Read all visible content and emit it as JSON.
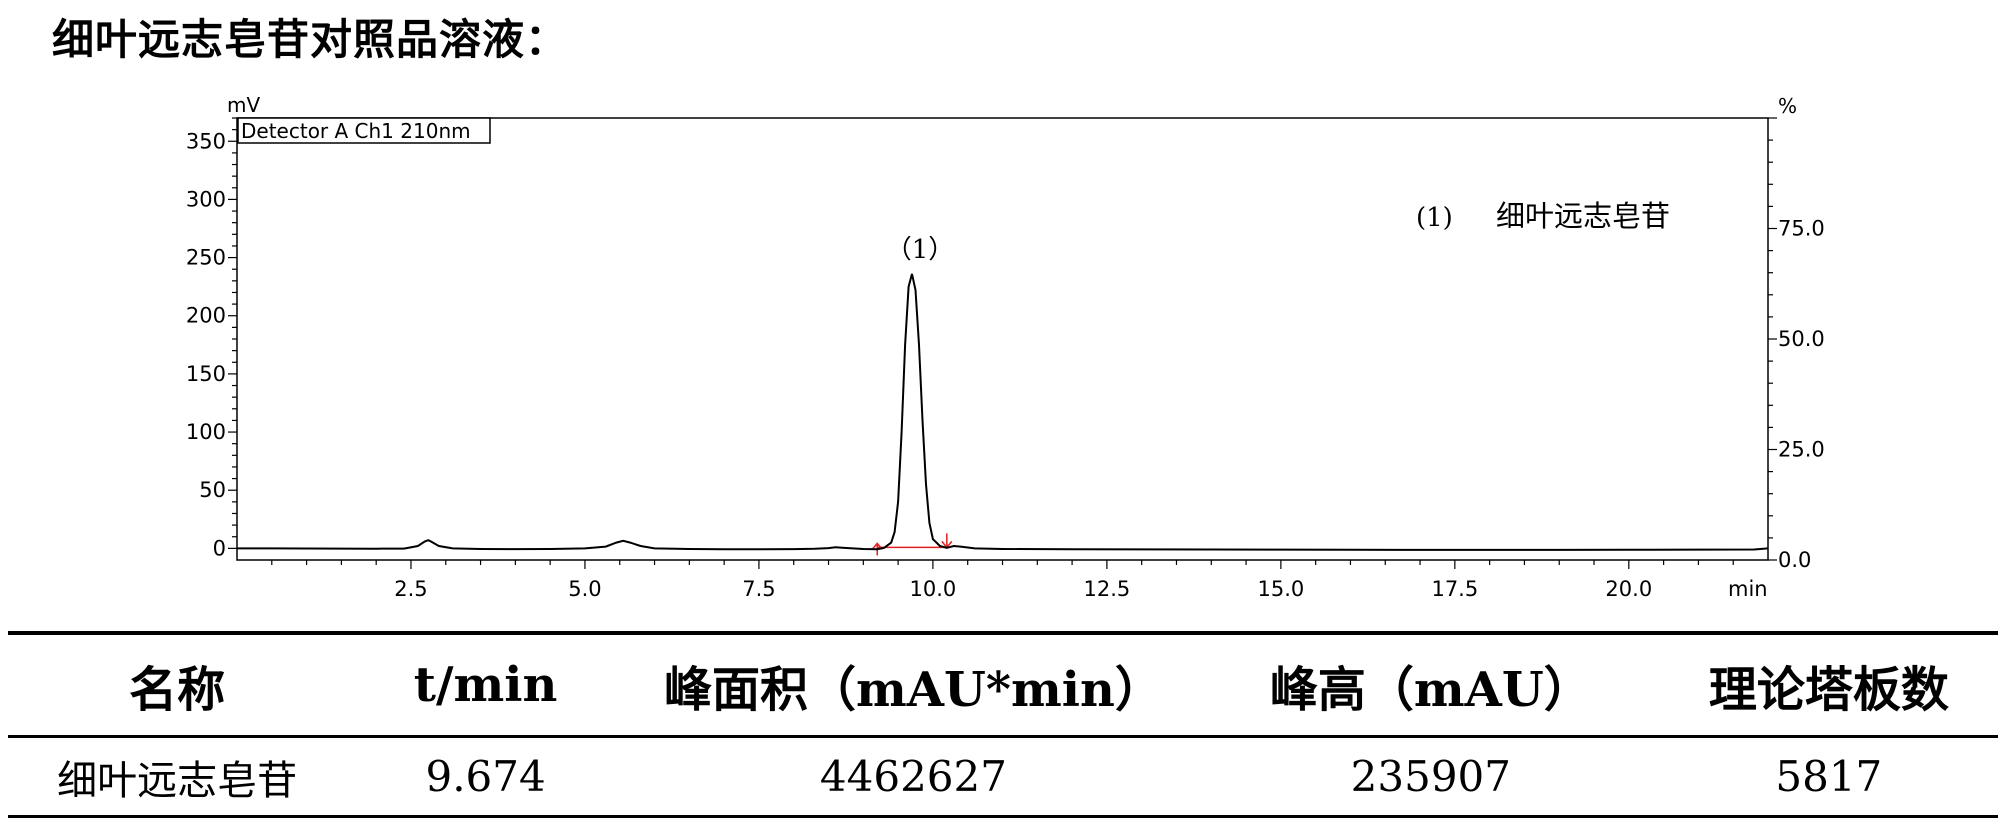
{
  "heading": "细叶远志皂苷对照品溶液：",
  "chart_data": {
    "type": "line",
    "detector_label": "Detector A Ch1 210nm",
    "y_unit": "mV",
    "y2_unit": "%",
    "x_unit": "min",
    "xlim": [
      0,
      22
    ],
    "ylim": [
      -10,
      370
    ],
    "y2lim": [
      0,
      100
    ],
    "x_ticks": [
      "2.5",
      "5.0",
      "7.5",
      "10.0",
      "12.5",
      "15.0",
      "17.5",
      "20.0"
    ],
    "y_ticks": [
      "0",
      "50",
      "100",
      "150",
      "200",
      "250",
      "300",
      "350"
    ],
    "y2_ticks": [
      "0.0",
      "25.0",
      "50.0",
      "75.0"
    ],
    "peak_label": "（1）",
    "legend": {
      "number": "(1)",
      "name": "细叶远志皂苷"
    },
    "baseline_range": [
      9.2,
      10.2
    ],
    "series": [
      {
        "x": [
          0.0,
          0.5,
          1.0,
          1.5,
          2.0,
          2.4,
          2.6,
          2.7,
          2.75,
          2.8,
          2.9,
          3.1,
          3.5,
          4.0,
          4.5,
          5.0,
          5.3,
          5.45,
          5.55,
          5.65,
          5.8,
          6.0,
          6.5,
          7.0,
          7.5,
          8.0,
          8.3,
          8.5,
          8.6,
          8.7,
          9.0,
          9.2,
          9.3,
          9.4,
          9.45,
          9.5,
          9.55,
          9.6,
          9.65,
          9.7,
          9.75,
          9.8,
          9.85,
          9.9,
          9.95,
          10.0,
          10.1,
          10.2,
          10.3,
          10.4,
          10.6,
          11.0,
          12.0,
          13.0,
          14.0,
          15.0,
          16.0,
          17.0,
          18.0,
          19.0,
          20.0,
          21.0,
          21.8,
          22.0
        ],
        "y": [
          0.0,
          0.0,
          -0.1,
          -0.2,
          -0.3,
          -0.2,
          2.0,
          6.0,
          7.0,
          5.5,
          2.0,
          0.0,
          -0.5,
          -0.6,
          -0.5,
          0.0,
          1.5,
          5.0,
          6.5,
          5.0,
          2.0,
          0.0,
          -0.5,
          -0.8,
          -0.8,
          -0.6,
          -0.4,
          0.2,
          1.0,
          0.6,
          -0.5,
          -0.7,
          0.5,
          5.0,
          14.0,
          40.0,
          100.0,
          175.0,
          225.0,
          236.0,
          222.0,
          175.0,
          110.0,
          55.0,
          22.0,
          8.0,
          2.0,
          0.5,
          2.0,
          1.5,
          0.0,
          -0.5,
          -0.8,
          -0.9,
          -1.0,
          -1.1,
          -1.2,
          -1.3,
          -1.3,
          -1.3,
          -1.2,
          -1.1,
          -1.0,
          0.0
        ]
      }
    ]
  },
  "table": {
    "headers": [
      "名称",
      "t/min",
      "峰面积（mAU*min）",
      "峰高（mAU）",
      "理论塔板数"
    ],
    "rows": [
      [
        "细叶远志皂苷",
        "9.674",
        "4462627",
        "235907",
        "5817"
      ]
    ]
  }
}
